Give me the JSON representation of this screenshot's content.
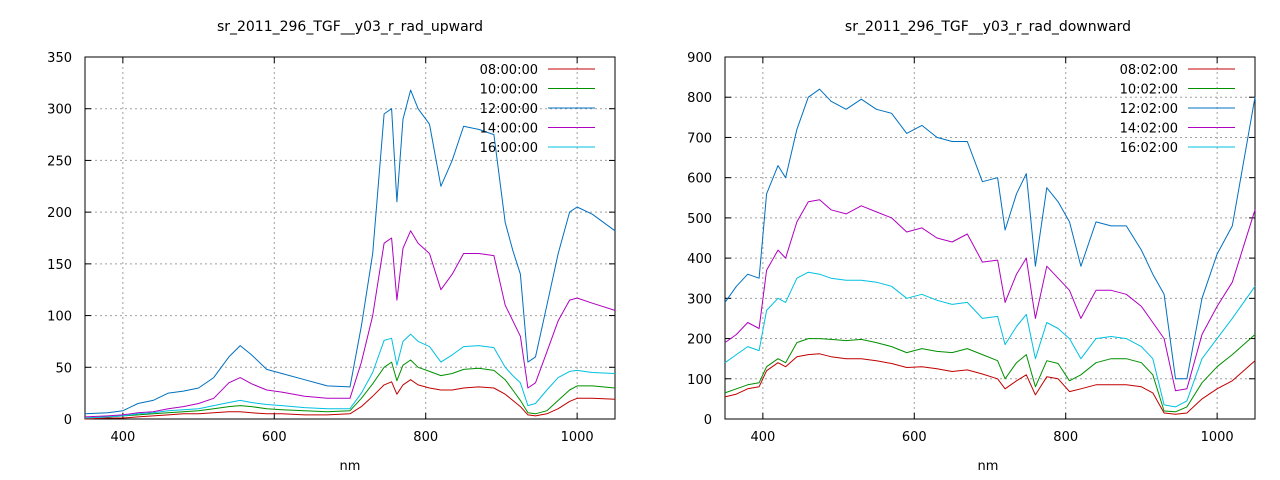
{
  "colors": {
    "series": [
      "#c00000",
      "#009000",
      "#0070c0",
      "#b000c0",
      "#00c0e0"
    ],
    "grid": "#a0a0a0",
    "axis": "#000000"
  },
  "chart_data": [
    {
      "type": "line",
      "title": "sr_2011_296_TGF__y03_r_rad_upward",
      "xlabel": "nm",
      "ylabel": "",
      "xlim": [
        350,
        1050
      ],
      "ylim": [
        0,
        350
      ],
      "xticks": [
        400,
        600,
        800,
        1000
      ],
      "yticks": [
        0,
        50,
        100,
        150,
        200,
        250,
        300,
        350
      ],
      "grid": true,
      "legend_position": "top-right",
      "x": [
        350,
        380,
        400,
        420,
        440,
        460,
        480,
        500,
        520,
        540,
        555,
        570,
        590,
        610,
        640,
        670,
        700,
        715,
        730,
        745,
        755,
        762,
        770,
        780,
        790,
        805,
        820,
        835,
        850,
        870,
        890,
        905,
        915,
        925,
        935,
        945,
        960,
        975,
        990,
        1000,
        1020,
        1050
      ],
      "series": [
        {
          "name": "08:00:00",
          "values": [
            0,
            1,
            1,
            2,
            3,
            4,
            5,
            5,
            6,
            7,
            7,
            6,
            5,
            5,
            4,
            4,
            5,
            12,
            22,
            33,
            36,
            24,
            33,
            38,
            33,
            30,
            28,
            28,
            30,
            31,
            30,
            24,
            18,
            12,
            4,
            3,
            5,
            10,
            17,
            20,
            20,
            19
          ]
        },
        {
          "name": "10:00:00",
          "values": [
            1,
            2,
            3,
            4,
            5,
            6,
            7,
            8,
            10,
            12,
            13,
            12,
            10,
            9,
            8,
            7,
            8,
            20,
            34,
            50,
            55,
            37,
            52,
            57,
            50,
            46,
            42,
            44,
            48,
            49,
            47,
            38,
            28,
            18,
            6,
            5,
            8,
            18,
            28,
            32,
            32,
            30
          ]
        },
        {
          "name": "12:00:00",
          "values": [
            5,
            6,
            8,
            15,
            18,
            25,
            27,
            30,
            40,
            60,
            71,
            62,
            48,
            44,
            38,
            32,
            31,
            90,
            160,
            295,
            300,
            210,
            290,
            318,
            300,
            285,
            225,
            250,
            283,
            280,
            275,
            190,
            163,
            140,
            55,
            60,
            110,
            160,
            200,
            205,
            198,
            182
          ]
        },
        {
          "name": "14:00:00",
          "values": [
            2,
            3,
            4,
            6,
            7,
            10,
            12,
            15,
            20,
            35,
            40,
            34,
            28,
            26,
            22,
            20,
            20,
            55,
            100,
            170,
            175,
            115,
            165,
            182,
            170,
            160,
            125,
            140,
            160,
            160,
            158,
            110,
            95,
            80,
            30,
            35,
            65,
            95,
            115,
            117,
            112,
            105
          ]
        },
        {
          "name": "16:00:00",
          "values": [
            1,
            2,
            3,
            5,
            6,
            8,
            9,
            10,
            13,
            16,
            18,
            16,
            14,
            13,
            11,
            10,
            10,
            25,
            45,
            76,
            78,
            52,
            75,
            82,
            75,
            70,
            55,
            62,
            70,
            71,
            69,
            50,
            42,
            35,
            13,
            15,
            28,
            40,
            46,
            47,
            45,
            44
          ]
        }
      ]
    },
    {
      "type": "line",
      "title": "sr_2011_296_TGF__y03_r_rad_downward",
      "xlabel": "nm",
      "ylabel": "",
      "xlim": [
        350,
        1050
      ],
      "ylim": [
        0,
        900
      ],
      "xticks": [
        400,
        600,
        800,
        1000
      ],
      "yticks": [
        0,
        100,
        200,
        300,
        400,
        500,
        600,
        700,
        800,
        900
      ],
      "grid": true,
      "legend_position": "top-right",
      "x": [
        350,
        365,
        380,
        395,
        405,
        420,
        430,
        445,
        460,
        475,
        490,
        510,
        530,
        550,
        570,
        590,
        610,
        630,
        650,
        670,
        690,
        710,
        720,
        735,
        748,
        760,
        775,
        790,
        805,
        820,
        840,
        860,
        880,
        900,
        915,
        930,
        945,
        960,
        980,
        1000,
        1020,
        1050
      ],
      "series": [
        {
          "name": "08:02:00",
          "values": [
            55,
            62,
            75,
            80,
            120,
            140,
            130,
            155,
            160,
            162,
            155,
            150,
            150,
            145,
            138,
            128,
            130,
            125,
            118,
            122,
            112,
            100,
            75,
            95,
            110,
            60,
            105,
            100,
            68,
            75,
            85,
            85,
            85,
            80,
            65,
            15,
            12,
            15,
            50,
            75,
            95,
            145
          ]
        },
        {
          "name": "10:02:00",
          "values": [
            65,
            75,
            85,
            90,
            130,
            150,
            140,
            190,
            200,
            200,
            198,
            195,
            198,
            190,
            180,
            165,
            175,
            168,
            165,
            175,
            160,
            145,
            100,
            140,
            160,
            80,
            145,
            138,
            95,
            110,
            140,
            150,
            150,
            140,
            110,
            20,
            18,
            30,
            90,
            130,
            160,
            210
          ]
        },
        {
          "name": "12:02:00",
          "values": [
            290,
            330,
            360,
            350,
            560,
            630,
            600,
            720,
            800,
            820,
            790,
            770,
            795,
            770,
            760,
            710,
            730,
            700,
            690,
            690,
            590,
            600,
            470,
            560,
            610,
            380,
            575,
            540,
            490,
            380,
            490,
            480,
            480,
            420,
            360,
            310,
            100,
            100,
            300,
            410,
            480,
            800
          ]
        },
        {
          "name": "14:02:00",
          "values": [
            190,
            210,
            240,
            225,
            370,
            420,
            400,
            490,
            540,
            545,
            520,
            510,
            530,
            515,
            500,
            465,
            475,
            450,
            440,
            460,
            390,
            395,
            290,
            360,
            400,
            250,
            380,
            350,
            320,
            250,
            320,
            320,
            310,
            280,
            240,
            200,
            70,
            75,
            210,
            280,
            340,
            520
          ]
        },
        {
          "name": "16:02:00",
          "values": [
            140,
            160,
            180,
            170,
            270,
            300,
            290,
            350,
            365,
            360,
            350,
            345,
            345,
            340,
            330,
            300,
            310,
            295,
            285,
            290,
            250,
            255,
            185,
            230,
            260,
            150,
            240,
            225,
            200,
            150,
            200,
            205,
            200,
            180,
            150,
            35,
            30,
            45,
            150,
            200,
            250,
            330
          ]
        }
      ]
    }
  ]
}
